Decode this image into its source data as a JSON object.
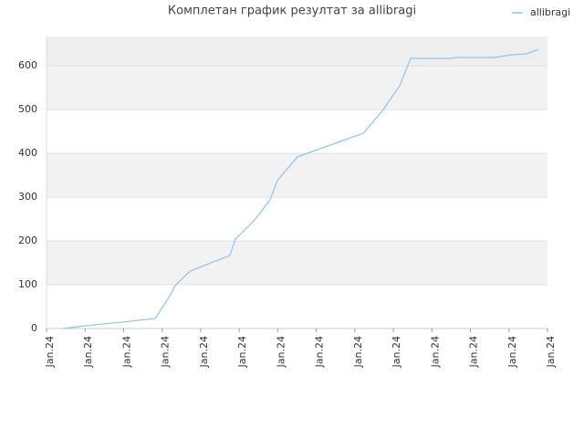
{
  "chart_data": {
    "type": "line",
    "title": "Комплетан график резултат за allibragi",
    "x": [
      0.43,
      1.0,
      2.0,
      2.82,
      2.96,
      3.17,
      3.34,
      3.72,
      4.76,
      4.9,
      5.19,
      5.42,
      5.8,
      5.99,
      6.51,
      8.22,
      8.74,
      9.16,
      9.45,
      10.49,
      10.63,
      11.63,
      12.05,
      12.43,
      12.76
    ],
    "series": [
      {
        "name": "allibragi",
        "color": "#8ec4f0",
        "values": [
          0,
          6,
          15,
          23,
          42,
          70,
          98,
          131,
          167,
          204,
          229,
          250,
          294,
          338,
          392,
          446,
          500,
          554,
          617,
          617,
          619,
          619,
          625,
          627,
          637
        ]
      }
    ],
    "xlim": [
      0,
      13
    ],
    "xticks": [
      {
        "value": 0,
        "label": "Jan.24"
      },
      {
        "value": 1,
        "label": "Jan.24"
      },
      {
        "value": 2,
        "label": "Jan.24"
      },
      {
        "value": 3,
        "label": "Jan.24"
      },
      {
        "value": 4,
        "label": "Jan.24"
      },
      {
        "value": 5,
        "label": "Jan.24"
      },
      {
        "value": 6,
        "label": "Jan.24"
      },
      {
        "value": 7,
        "label": "Jan.24"
      },
      {
        "value": 8,
        "label": "Jan.24"
      },
      {
        "value": 9,
        "label": "Jan.24"
      },
      {
        "value": 10,
        "label": "Jan.24"
      },
      {
        "value": 11,
        "label": "Jan.24"
      },
      {
        "value": 12,
        "label": "Jan.24"
      },
      {
        "value": 13,
        "label": "Jan.24"
      }
    ],
    "ylim": [
      0,
      667
    ],
    "yticks": [
      0,
      100,
      200,
      300,
      400,
      500,
      600
    ],
    "grid": true,
    "legend": "top-right"
  }
}
